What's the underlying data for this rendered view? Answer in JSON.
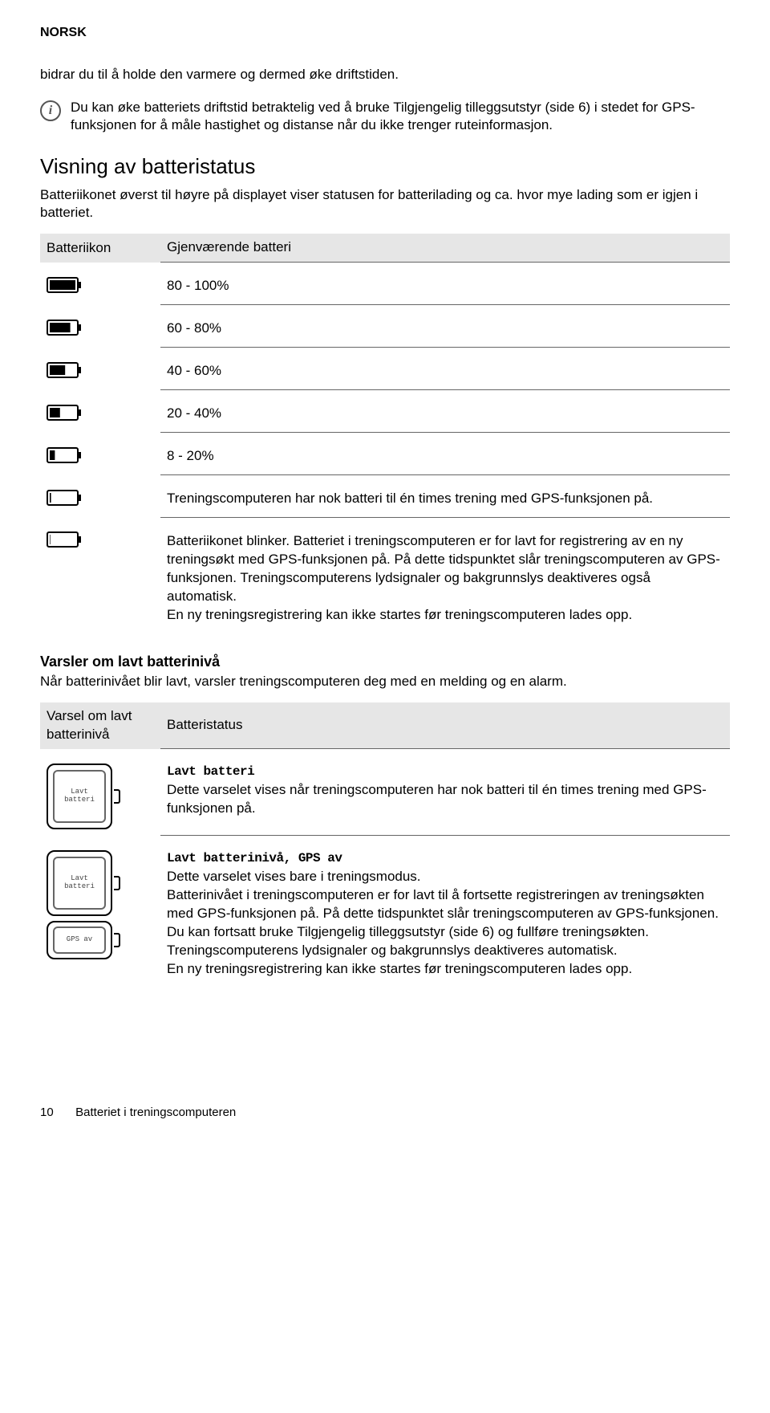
{
  "header": {
    "language": "NORSK"
  },
  "intro": {
    "line1": "bidrar du til å holde den varmere og dermed øke driftstiden.",
    "info_text": "Du kan øke batteriets driftstid betraktelig ved å bruke Tilgjengelig tilleggsutstyr (side 6) i stedet for GPS-funksjonen for å måle hastighet og distanse når du ikke trenger ruteinformasjon."
  },
  "battery_status": {
    "title": "Visning av batteristatus",
    "desc": "Batteriikonet øverst til høyre på displayet viser statusen for batterilading og ca. hvor mye lading som er igjen i batteriet.",
    "table": {
      "col_icon": "Batteriikon",
      "col_text": "Gjenværende batteri",
      "rows": [
        {
          "level": 5,
          "text": "80 - 100%"
        },
        {
          "level": 4,
          "text": "60 - 80%"
        },
        {
          "level": 3,
          "text": "40 - 60%"
        },
        {
          "level": 2,
          "text": "20 - 40%"
        },
        {
          "level": 1,
          "text": "8 - 20%"
        },
        {
          "level": 0.25,
          "text": "Treningscomputeren har nok batteri til én times trening med GPS-funksjonen på."
        },
        {
          "level": 0.1,
          "text": "Batteriikonet blinker. Batteriet i treningscomputeren er for lavt for registrering av en ny treningsøkt med GPS-funksjonen på. På dette tidspunktet slår treningscomputeren av GPS-funksjonen. Treningscomputerens lydsignaler og bakgrunnslys deaktiveres også automatisk.\nEn ny treningsregistrering kan ikke startes før treningscomputeren lades opp."
        }
      ]
    }
  },
  "low_battery": {
    "title": "Varsler om lavt batterinivå",
    "desc": "Når batterinivået blir lavt, varsler treningscomputeren deg med en melding og en alarm.",
    "table": {
      "col_icon": "Varsel om lavt batterinivå",
      "col_text": "Batteristatus",
      "rows": [
        {
          "screens": [
            {
              "label": "Lavt batteri",
              "size": "large"
            }
          ],
          "heading": "Lavt batteri",
          "text": "Dette varselet vises når treningscomputeren har nok batteri til én times trening med GPS-funksjonen på."
        },
        {
          "screens": [
            {
              "label": "Lavt batteri",
              "size": "large"
            },
            {
              "label": "GPS av",
              "size": "small"
            }
          ],
          "heading": "Lavt batterinivå, GPS av",
          "text": "Dette varselet vises bare i treningsmodus.\nBatterinivået i treningscomputeren er for lavt til å fortsette registreringen av treningsøkten med GPS-funksjonen på. På dette tidspunktet slår treningscomputeren av GPS-funksjonen. Du kan fortsatt bruke Tilgjengelig tilleggsutstyr (side 6) og fullføre treningsøkten. Treningscomputerens lydsignaler og bakgrunnslys deaktiveres automatisk.\nEn ny treningsregistrering kan ikke startes før treningscomputeren lades opp."
        }
      ]
    }
  },
  "footer": {
    "page": "10",
    "chapter": "Batteriet i treningscomputeren"
  },
  "style": {
    "battery_icon": {
      "width": 38,
      "height": 18,
      "stroke": "#000",
      "stroke_width": 2,
      "fill_color": "#000",
      "bg": "#fff",
      "radius": 2
    }
  }
}
